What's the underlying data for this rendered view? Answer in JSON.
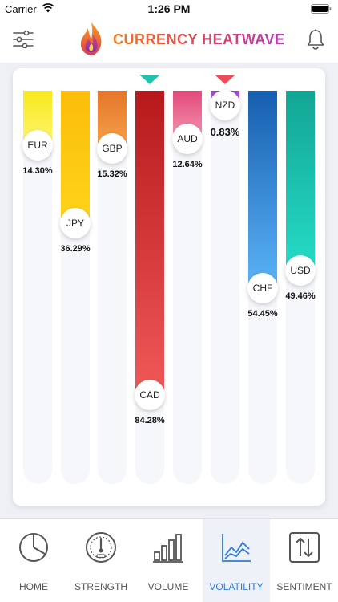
{
  "status_bar": {
    "carrier": "Carrier",
    "time": "1:26 PM"
  },
  "header": {
    "title": "CURRENCY HEATWAVE",
    "filter_icon": "sliders-icon",
    "bell_icon": "bell-icon"
  },
  "chart_data": {
    "type": "bar",
    "categories": [
      "EUR",
      "JPY",
      "GBP",
      "CAD",
      "AUD",
      "NZD",
      "CHF",
      "USD"
    ],
    "values": [
      14.3,
      36.29,
      15.32,
      84.28,
      12.64,
      0.83,
      54.45,
      49.46
    ],
    "labels": [
      "14.30%",
      "36.29%",
      "15.32%",
      "84.28%",
      "12.64%",
      "0.83%",
      "54.45%",
      "49.46%"
    ],
    "ylim": [
      0,
      100
    ],
    "colors": [
      [
        "#f9e81e",
        "#fef46a"
      ],
      [
        "#fbbd0a",
        "#ffd31a"
      ],
      [
        "#e4762a",
        "#f4a048"
      ],
      [
        "#b7191b",
        "#f05858"
      ],
      [
        "#e2497a",
        "#f390ad"
      ],
      [
        "#9a43c4",
        "#c071e0"
      ],
      [
        "#165eaf",
        "#5ab2f6"
      ],
      [
        "#12a594",
        "#25dbc6"
      ]
    ],
    "markers": {
      "high": "CAD",
      "low": "NZD",
      "high_color": "#21c2ad",
      "low_color": "#ef4a58"
    }
  },
  "tabs": [
    {
      "label": "HOME",
      "icon": "pie-chart-icon",
      "active": false
    },
    {
      "label": "STRENGTH",
      "icon": "gauge-icon",
      "active": false
    },
    {
      "label": "VOLUME",
      "icon": "bar-chart-icon",
      "active": false
    },
    {
      "label": "VOLATILITY",
      "icon": "line-chart-icon",
      "active": true
    },
    {
      "label": "SENTIMENT",
      "icon": "up-down-arrows-icon",
      "active": false
    }
  ]
}
